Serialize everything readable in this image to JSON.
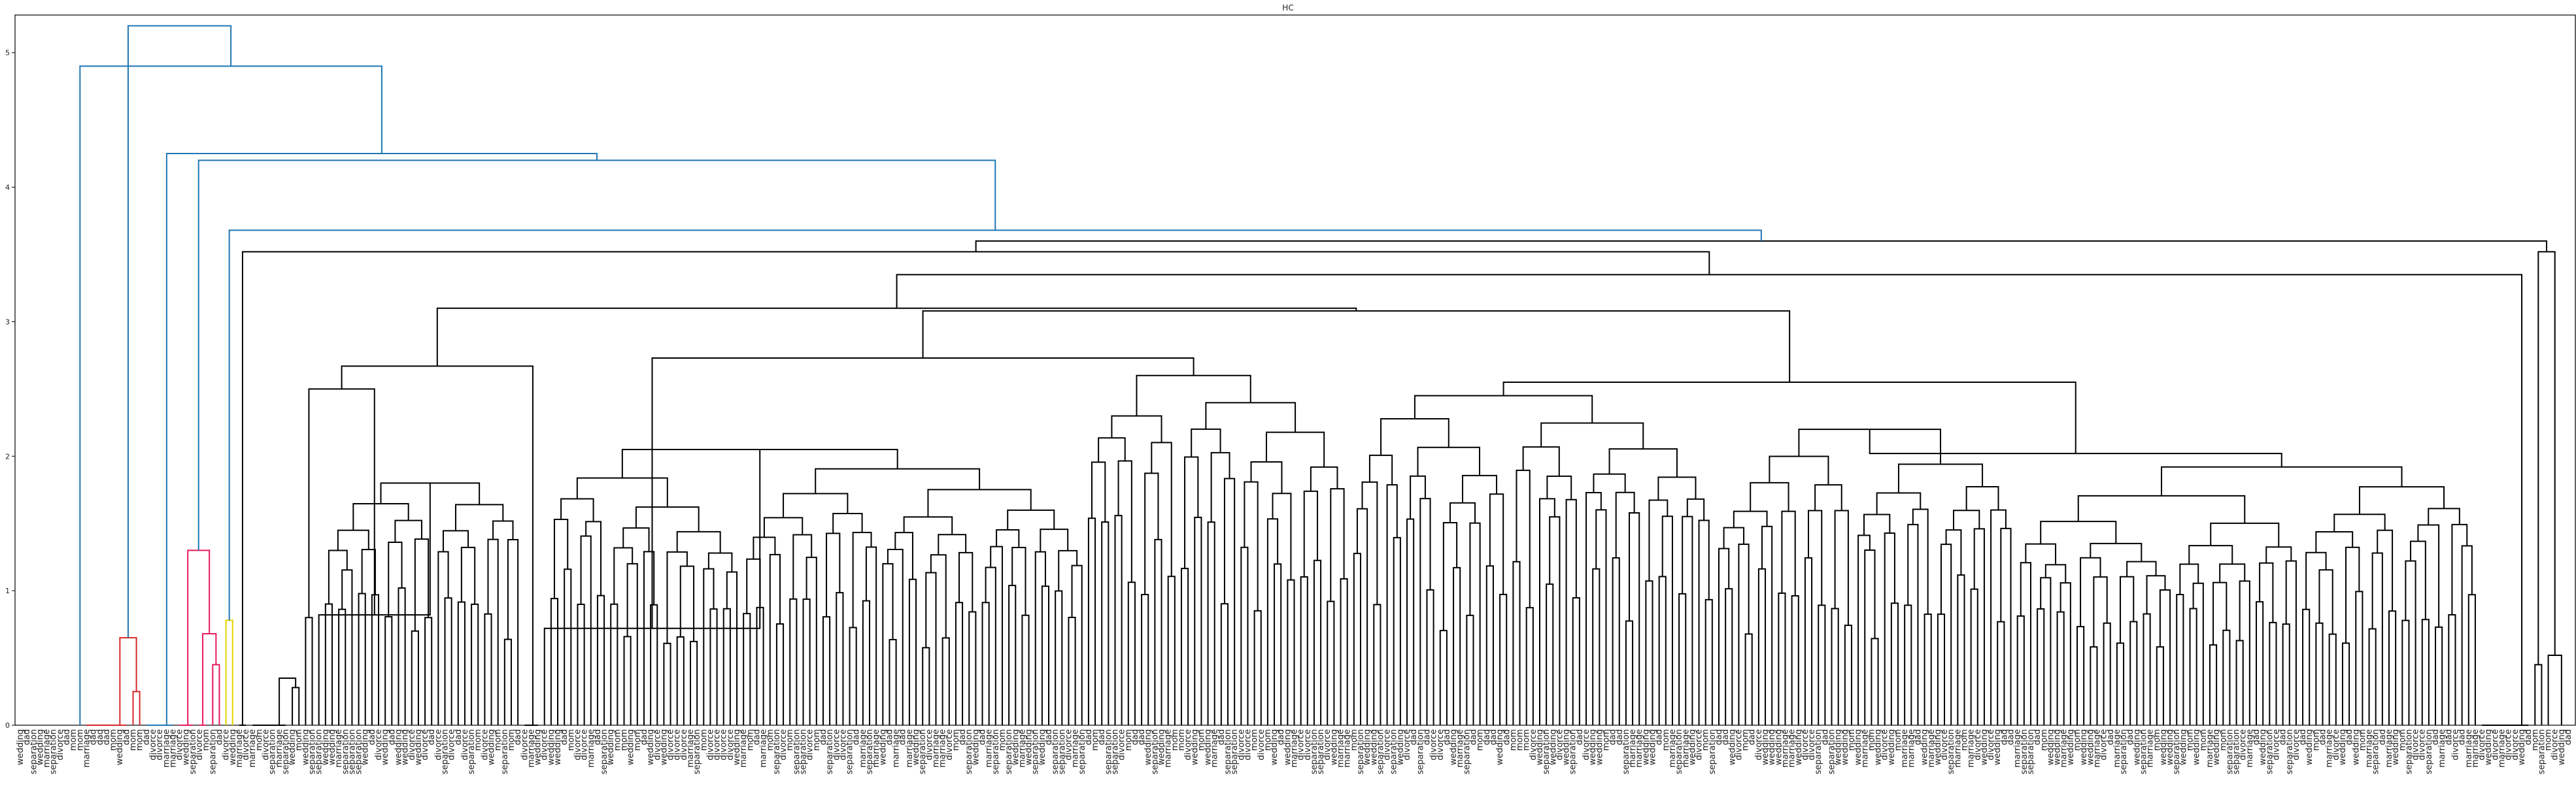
{
  "chart_data": {
    "type": "dendrogram",
    "title": "HC",
    "xlabel": "",
    "ylabel": "",
    "ylim": [
      0,
      5.28
    ],
    "y_ticks": [
      0,
      1,
      2,
      3,
      4,
      5
    ],
    "grid": false,
    "colors": {
      "above_threshold": "#1f77b4",
      "cluster_red": "#d62728",
      "cluster_magenta": "#e6195b",
      "cluster_yellow": "#e7d500",
      "cluster_black": "#000000"
    },
    "leaf_label_samples": [
      "divorce",
      "separation",
      "marriage",
      "wedding",
      "mom",
      "dad"
    ],
    "top_merges": [
      {
        "height": 5.2,
        "color": "blue"
      },
      {
        "height": 4.9,
        "color": "blue"
      },
      {
        "height": 4.25,
        "color": "blue"
      },
      {
        "height": 4.2,
        "color": "blue"
      },
      {
        "height": 3.68,
        "color": "blue"
      },
      {
        "height": 3.6,
        "color": "black"
      }
    ],
    "red_cluster": {
      "merge_heights": [
        0.65,
        0.25
      ]
    },
    "magenta_cluster": {
      "merge_heights": [
        1.3,
        0.68,
        0.45
      ]
    },
    "yellow_cluster": {
      "merge_heights": [
        0.78
      ]
    }
  }
}
